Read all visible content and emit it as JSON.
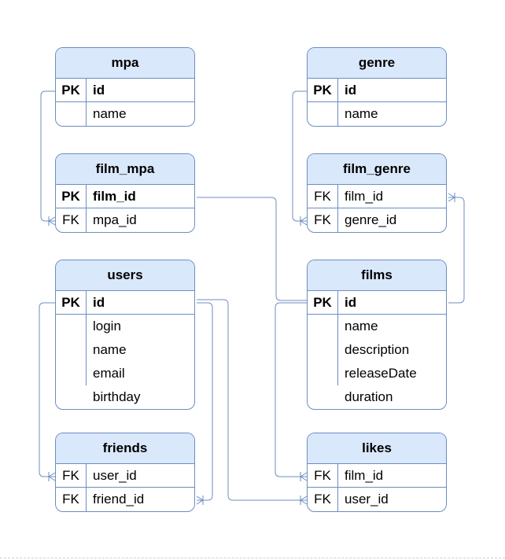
{
  "entities": {
    "mpa": {
      "title": "mpa",
      "fields": [
        {
          "key": "PK",
          "name": "id"
        },
        {
          "key": "",
          "name": "name"
        }
      ]
    },
    "genre": {
      "title": "genre",
      "fields": [
        {
          "key": "PK",
          "name": "id"
        },
        {
          "key": "",
          "name": "name"
        }
      ]
    },
    "film_mpa": {
      "title": "film_mpa",
      "fields": [
        {
          "key": "PK",
          "name": "film_id"
        },
        {
          "key": "FK",
          "name": "mpa_id"
        }
      ]
    },
    "film_genre": {
      "title": "film_genre",
      "fields": [
        {
          "key": "FK",
          "name": "film_id"
        },
        {
          "key": "FK",
          "name": "genre_id"
        }
      ]
    },
    "users": {
      "title": "users",
      "fields": [
        {
          "key": "PK",
          "name": "id"
        },
        {
          "key": "",
          "name": "login"
        },
        {
          "key": "",
          "name": "name"
        },
        {
          "key": "",
          "name": "email"
        },
        {
          "key": "",
          "name": "birthday"
        }
      ]
    },
    "films": {
      "title": "films",
      "fields": [
        {
          "key": "PK",
          "name": "id"
        },
        {
          "key": "",
          "name": "name"
        },
        {
          "key": "",
          "name": "description"
        },
        {
          "key": "",
          "name": "releaseDate"
        },
        {
          "key": "",
          "name": "duration"
        }
      ]
    },
    "friends": {
      "title": "friends",
      "fields": [
        {
          "key": "FK",
          "name": "user_id"
        },
        {
          "key": "FK",
          "name": "friend_id"
        }
      ]
    },
    "likes": {
      "title": "likes",
      "fields": [
        {
          "key": "FK",
          "name": "film_id"
        },
        {
          "key": "FK",
          "name": "user_id"
        }
      ]
    }
  },
  "colors": {
    "header": "#dae8fc",
    "border": "#6c8ebf",
    "line": "#6c8ebf"
  }
}
